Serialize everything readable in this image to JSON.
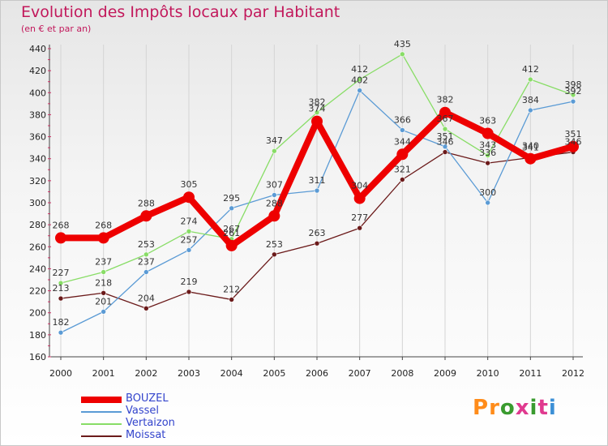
{
  "header": {
    "title": "Evolution des Impôts locaux par Habitant",
    "subtitle": "(en € et par an)"
  },
  "brand": {
    "text": "Proxiti",
    "colors": [
      "#ff8c1a",
      "#ff8c1a",
      "#3a9b2f",
      "#e03a8f",
      "#3a9b2f",
      "#e03a8f",
      "#3b8fd6"
    ]
  },
  "chart_data": {
    "type": "line",
    "title": "Evolution des Impôts locaux par Habitant",
    "subtitle": "(en € et par an)",
    "xlabel": "",
    "ylabel": "",
    "ylim": [
      160,
      440
    ],
    "y_ticks": [
      160,
      180,
      200,
      220,
      240,
      260,
      280,
      300,
      320,
      340,
      360,
      380,
      400,
      420,
      440
    ],
    "categories": [
      "2000",
      "2001",
      "2002",
      "2003",
      "2004",
      "2005",
      "2006",
      "2007",
      "2008",
      "2009",
      "2010",
      "2011",
      "2012"
    ],
    "grid": "vertical",
    "legend_position": "bottom-left",
    "series": [
      {
        "name": "Moissat",
        "color": "#6b1a1a",
        "style": "thin",
        "values": [
          213,
          218,
          204,
          219,
          212,
          253,
          263,
          277,
          321,
          346,
          336,
          341,
          346
        ]
      },
      {
        "name": "Vassel",
        "color": "#5b9bd5",
        "style": "thin",
        "values": [
          182,
          201,
          237,
          257,
          295,
          307,
          311,
          402,
          366,
          351,
          300,
          384,
          392
        ]
      },
      {
        "name": "Vertaizon",
        "color": "#88dd66",
        "style": "thin",
        "values": [
          227,
          237,
          253,
          274,
          267,
          347,
          382,
          412,
          435,
          367,
          343,
          412,
          398
        ]
      },
      {
        "name": "BOUZEL",
        "color": "#ee0000",
        "style": "thick",
        "values": [
          268,
          268,
          288,
          305,
          261,
          288,
          374,
          304,
          344,
          382,
          363,
          340,
          351
        ]
      }
    ],
    "legend_order": [
      "BOUZEL",
      "Vassel",
      "Vertaizon",
      "Moissat"
    ]
  }
}
